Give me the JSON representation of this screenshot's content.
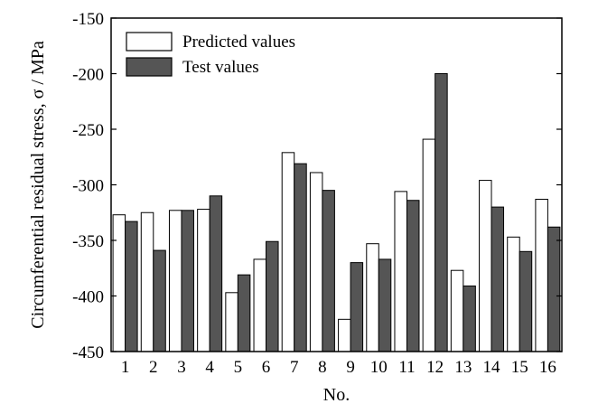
{
  "chart_data": {
    "type": "bar",
    "title": "",
    "xlabel": "No.",
    "ylabel": "Circumferential residual stress, σ / MPa",
    "categories": [
      "1",
      "2",
      "3",
      "4",
      "5",
      "6",
      "7",
      "8",
      "9",
      "10",
      "11",
      "12",
      "13",
      "14",
      "15",
      "16"
    ],
    "ylim": [
      -450,
      -150
    ],
    "yticks": [
      -150,
      -200,
      -250,
      -300,
      -350,
      -400,
      -450
    ],
    "series": [
      {
        "name": "Predicted values",
        "color": "#ffffff",
        "values": [
          -327,
          -325,
          -323,
          -322,
          -397,
          -367,
          -271,
          -289,
          -421,
          -353,
          -306,
          -259,
          -377,
          -296,
          -347,
          -313
        ]
      },
      {
        "name": "Test values",
        "color": "#555555",
        "values": [
          -333,
          -359,
          -323,
          -310,
          -381,
          -351,
          -281,
          -305,
          -370,
          -367,
          -314,
          -200,
          -391,
          -320,
          -360,
          -338
        ]
      }
    ],
    "legend": "top-left",
    "grid": false
  }
}
